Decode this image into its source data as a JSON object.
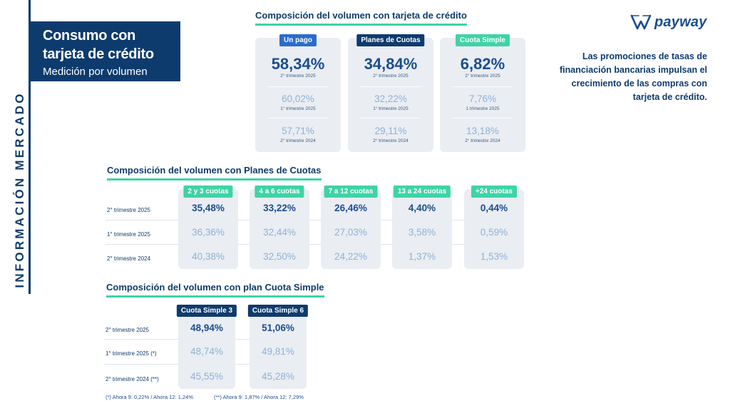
{
  "side_label": "INFORMACIÓN MERCADO",
  "header": {
    "title_line1": "Consumo con",
    "title_line2": "tarjeta de crédito",
    "subtitle": "Medición por volumen"
  },
  "logo": {
    "text": "payway",
    "icon": "payway-logo-icon"
  },
  "side_text": "Las promociones de tasas de financiación bancarias impulsan el crecimiento de las compras con tarjeta de crédito.",
  "colors": {
    "navy": "#0e3b6e",
    "blue": "#2a6ccf",
    "green": "#3fd3a6",
    "card": "#eaedf2",
    "light_value": "#8fb1d8"
  },
  "chart_data": [
    {
      "type": "table",
      "title": "Composición del volumen con tarjeta de crédito",
      "columns": [
        {
          "name": "Un pago",
          "rows": [
            {
              "value": "58,34%",
              "period": "2° trimestre 2025"
            },
            {
              "value": "60,02%",
              "period": "1° trimestre 2025"
            },
            {
              "value": "57,71%",
              "period": "2° trimestre 2024"
            }
          ]
        },
        {
          "name": "Planes de Cuotas",
          "rows": [
            {
              "value": "34,84%",
              "period": "2° trimestre 2025"
            },
            {
              "value": "32,22%",
              "period": "1° trimestre 2025"
            },
            {
              "value": "29,11%",
              "period": "2° trimestre 2024"
            }
          ]
        },
        {
          "name": "Cuota Simple",
          "rows": [
            {
              "value": "6,82%",
              "period": "2° trimestre 2025"
            },
            {
              "value": "7,76%",
              "period": "1 trimestre 2025"
            },
            {
              "value": "13,18%",
              "period": "2° trimestre 2024"
            }
          ]
        }
      ]
    },
    {
      "type": "table",
      "title": "Composición del volumen con Planes de Cuotas",
      "row_labels": [
        "2° trimestre 2025",
        "1° trimestre 2025",
        "2° trimestre 2024"
      ],
      "columns": [
        {
          "name": "2 y 3 cuotas",
          "values": [
            "35,48%",
            "36,36%",
            "40,38%"
          ]
        },
        {
          "name": "4 a 6 cuotas",
          "values": [
            "33,22%",
            "32,44%",
            "32,50%"
          ]
        },
        {
          "name": "7 a 12 cuotas",
          "values": [
            "26,46%",
            "27,03%",
            "24,22%"
          ]
        },
        {
          "name": "13 a 24 cuotas",
          "values": [
            "4,40%",
            "3,58%",
            "1,37%"
          ]
        },
        {
          "name": "+24 cuotas",
          "values": [
            "0,44%",
            "0,59%",
            "1,53%"
          ]
        }
      ]
    },
    {
      "type": "table",
      "title": "Composición del volumen con plan Cuota Simple",
      "row_labels": [
        "2° trimestre 2025",
        "1° trimestre 2025 (*)",
        "2° trimestre 2024 (**)"
      ],
      "columns": [
        {
          "name": "Cuota Simple 3",
          "values": [
            "48,94%",
            "48,74%",
            "45,55%"
          ]
        },
        {
          "name": "Cuota Simple 6",
          "values": [
            "51,06%",
            "49,81%",
            "45,28%"
          ]
        }
      ],
      "notes": [
        "(*) Ahora 9: 0,22% / Ahora 12: 1,24%",
        "(**) Ahora 9: 1,87% / Ahora 12: 7,29%"
      ]
    }
  ]
}
